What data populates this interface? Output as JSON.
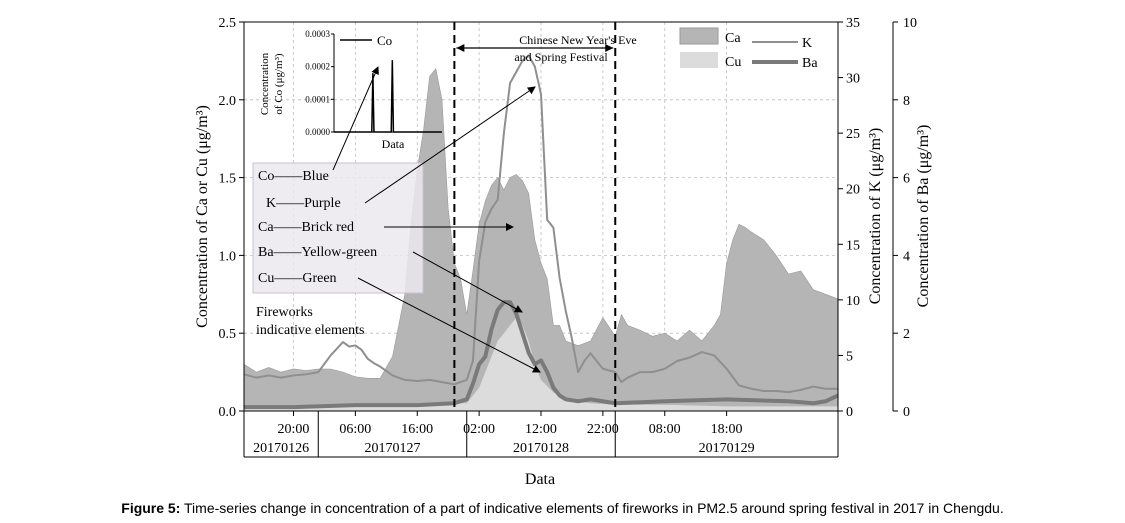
{
  "figure": {
    "caption_label": "Figure 5:",
    "caption_text": " Time-series change in concentration of a part of indicative elements of fireworks in PM2.5 around spring festival in 2017 in Chengdu."
  },
  "chart_data": {
    "type": "area",
    "xlabel": "Data",
    "ylabel_left": "Concentration of Ca or Cu (μg/m³)",
    "ylabel_right_k": "Concentration of K (μg/m³)",
    "ylabel_right_ba": "Concentration of Ba (μg/m³)",
    "ylim_left": [
      0,
      2.5
    ],
    "ylim_k": [
      0,
      35
    ],
    "ylim_ba": [
      0,
      10
    ],
    "yticks_left": [
      "0.0",
      "0.5",
      "1.0",
      "1.5",
      "2.0",
      "2.5"
    ],
    "yticks_k": [
      "0",
      "5",
      "10",
      "15",
      "20",
      "25",
      "30",
      "35"
    ],
    "yticks_ba": [
      "0",
      "2",
      "4",
      "6",
      "8",
      "10"
    ],
    "grid": true,
    "x_hours": [
      12,
      108
    ],
    "xticks": [
      {
        "hour": 20,
        "label": "20:00"
      },
      {
        "hour": 30,
        "label": "06:00"
      },
      {
        "hour": 40,
        "label": "16:00"
      },
      {
        "hour": 50,
        "label": "02:00"
      },
      {
        "hour": 60,
        "label": "12:00"
      },
      {
        "hour": 70,
        "label": "22:00"
      },
      {
        "hour": 80,
        "label": "08:00"
      },
      {
        "hour": 90,
        "label": "18:00"
      }
    ],
    "date_groups": [
      {
        "label": "20170126",
        "start": 12,
        "end": 24
      },
      {
        "label": "20170127",
        "start": 24,
        "end": 48
      },
      {
        "label": "20170128",
        "start": 48,
        "end": 72
      },
      {
        "label": "20170129",
        "start": 72,
        "end": 108
      }
    ],
    "date_separators": [
      24,
      48,
      72
    ],
    "event_lines": [
      46,
      72
    ],
    "event_label_line1": "Chinese New Year's Eve",
    "event_label_line2": "and Spring Festival",
    "series": [
      {
        "name": "Ca",
        "color": "#b5b5b5",
        "axis": "left",
        "x": [
          12,
          14,
          16,
          18,
          20,
          22,
          24,
          26,
          28,
          30,
          32,
          34,
          36,
          38,
          39,
          40,
          41,
          42,
          43,
          44,
          45,
          46,
          47,
          48,
          49,
          50,
          51,
          52,
          53,
          54,
          55,
          56,
          57,
          58,
          59,
          60,
          61,
          62,
          63,
          64,
          66,
          68,
          70,
          72,
          73,
          74,
          76,
          78,
          80,
          82,
          84,
          86,
          88,
          89,
          90,
          91,
          92,
          93,
          94,
          96,
          98,
          100,
          102,
          104,
          106,
          108
        ],
        "values": [
          0.3,
          0.25,
          0.28,
          0.25,
          0.27,
          0.26,
          0.27,
          0.27,
          0.25,
          0.22,
          0.21,
          0.21,
          0.35,
          0.75,
          1.2,
          1.55,
          1.8,
          2.15,
          2.2,
          2.0,
          1.3,
          0.95,
          0.85,
          0.62,
          0.9,
          1.2,
          1.35,
          1.45,
          1.5,
          1.42,
          1.5,
          1.52,
          1.48,
          1.4,
          1.1,
          0.95,
          0.85,
          0.55,
          0.55,
          0.45,
          0.42,
          0.45,
          0.6,
          0.48,
          0.62,
          0.55,
          0.52,
          0.48,
          0.5,
          0.45,
          0.52,
          0.45,
          0.55,
          0.62,
          0.95,
          1.1,
          1.2,
          1.18,
          1.15,
          1.1,
          1.0,
          0.88,
          0.9,
          0.78,
          0.75,
          0.72
        ]
      },
      {
        "name": "Cu",
        "color": "#dcdcdc",
        "axis": "left",
        "x": [
          12,
          20,
          30,
          40,
          46,
          48,
          50,
          52,
          53,
          54,
          55,
          56,
          57,
          58,
          59,
          60,
          62,
          64,
          66,
          68,
          72,
          80,
          90,
          100,
          108
        ],
        "values": [
          0.02,
          0.02,
          0.03,
          0.04,
          0.05,
          0.05,
          0.15,
          0.35,
          0.45,
          0.5,
          0.55,
          0.6,
          0.55,
          0.45,
          0.3,
          0.2,
          0.12,
          0.08,
          0.06,
          0.05,
          0.04,
          0.04,
          0.03,
          0.03,
          0.03
        ]
      },
      {
        "name": "K",
        "color": "#8f8f8f",
        "axis": "k",
        "x": [
          12,
          14,
          16,
          18,
          20,
          22,
          24,
          26,
          28,
          29,
          30,
          31,
          32,
          33,
          34,
          36,
          38,
          40,
          42,
          44,
          46,
          47,
          48,
          49,
          50,
          51,
          52,
          53,
          54,
          55,
          56,
          57,
          58,
          59,
          60,
          61,
          62,
          63,
          64,
          65,
          66,
          67,
          68,
          70,
          72,
          73,
          74,
          76,
          78,
          80,
          82,
          84,
          86,
          88,
          90,
          92,
          94,
          96,
          98,
          100,
          102,
          104,
          106,
          108
        ],
        "values": [
          3.3,
          3.0,
          3.2,
          3.0,
          3.2,
          3.3,
          3.5,
          5.0,
          6.2,
          5.8,
          5.9,
          5.5,
          4.7,
          4.3,
          4.0,
          3.2,
          2.8,
          2.7,
          2.8,
          2.6,
          2.4,
          2.6,
          2.8,
          4.5,
          13.5,
          17.0,
          18.2,
          19.0,
          25.0,
          29.5,
          30.5,
          31.5,
          32.0,
          31.0,
          28.5,
          17.2,
          16.5,
          12.0,
          9.0,
          6.5,
          3.5,
          4.5,
          5.2,
          3.8,
          3.5,
          2.6,
          3.0,
          3.5,
          3.5,
          3.8,
          4.5,
          4.8,
          5.3,
          5.0,
          3.8,
          2.3,
          2.0,
          1.8,
          1.8,
          1.7,
          1.9,
          2.2,
          2.0,
          2.0
        ]
      },
      {
        "name": "Ba",
        "color": "#7a7a7a",
        "axis": "ba",
        "x": [
          12,
          20,
          30,
          40,
          46,
          48,
          49,
          50,
          51,
          52,
          53,
          54,
          55,
          56,
          57,
          58,
          59,
          60,
          61,
          62,
          63,
          64,
          66,
          68,
          70,
          72,
          80,
          90,
          100,
          104,
          106,
          108
        ],
        "values": [
          0.1,
          0.1,
          0.15,
          0.15,
          0.2,
          0.3,
          0.7,
          1.2,
          1.4,
          2.1,
          2.6,
          2.8,
          2.8,
          2.5,
          2.0,
          1.5,
          1.2,
          1.3,
          1.0,
          0.6,
          0.4,
          0.3,
          0.25,
          0.3,
          0.25,
          0.2,
          0.25,
          0.3,
          0.25,
          0.2,
          0.25,
          0.4
        ]
      }
    ],
    "legend": [
      {
        "label": "Ca",
        "symbol": "fill",
        "color": "#b5b5b5"
      },
      {
        "label": "K",
        "symbol": "line",
        "color": "#8f8f8f"
      },
      {
        "label": "Cu",
        "symbol": "fill",
        "color": "#dcdcdc"
      },
      {
        "label": "Ba",
        "symbol": "thick-line",
        "color": "#7a7a7a"
      }
    ],
    "legend_position": "top-right",
    "inset": {
      "series_name": "Co",
      "xlabel": "Data",
      "ylabel_line1": "Concentration",
      "ylabel_line2": "of Co (μg/m³)",
      "yticks": [
        "0.0000",
        "0.0001",
        "0.0002",
        "0.0003"
      ],
      "ylim": [
        0,
        0.0003
      ],
      "x": [
        0,
        34,
        35,
        36,
        37,
        38,
        52,
        53,
        54,
        55,
        56,
        100
      ],
      "values": [
        0,
        0,
        0,
        0.00018,
        0,
        0,
        0,
        0,
        0.00022,
        0,
        0,
        0
      ]
    },
    "annotation_lines": [
      "Co——Blue",
      "K——Purple",
      "Ca——Brick red",
      "Ba——Yellow-green",
      "Cu——Green"
    ],
    "fireworks_note_line1": "Fireworks",
    "fireworks_note_line2": "indicative elements"
  }
}
